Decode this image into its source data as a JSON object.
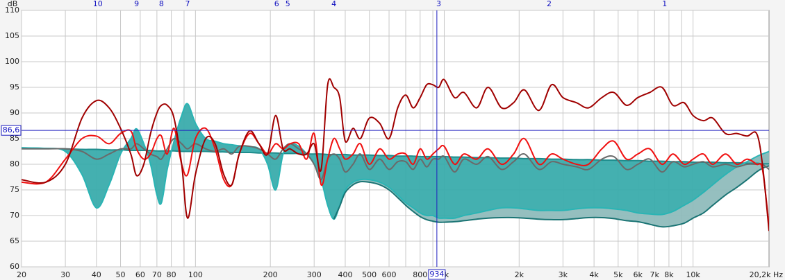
{
  "chart_data": {
    "type": "line",
    "y_label": "dB",
    "xscale": "log",
    "xlim": [
      20,
      20200
    ],
    "ylim": [
      60,
      110
    ],
    "grid": true,
    "yticks": [
      60,
      65,
      70,
      75,
      80,
      85,
      90,
      95,
      100,
      105,
      110
    ],
    "xticks": [
      20,
      30,
      40,
      50,
      60,
      70,
      80,
      100,
      200,
      300,
      400,
      500,
      600,
      800,
      {
        "value": 1000,
        "label": "1k"
      },
      {
        "value": 2000,
        "label": "2k"
      },
      {
        "value": 3000,
        "label": "3k"
      },
      {
        "value": 4000,
        "label": "4k"
      },
      {
        "value": 5000,
        "label": "5k"
      },
      {
        "value": 6000,
        "label": "6k"
      },
      {
        "value": 7000,
        "label": "7k"
      },
      {
        "value": 8000,
        "label": "8k"
      },
      {
        "value": 10000,
        "label": "10k"
      },
      {
        "value": 20200,
        "label": "20,2k Hz"
      }
    ],
    "xminor": [
      90,
      700,
      900,
      9000
    ],
    "markers": [
      {
        "label": 10,
        "x": 40.5
      },
      {
        "label": 9,
        "x": 58
      },
      {
        "label": 8,
        "x": 73
      },
      {
        "label": 7,
        "x": 93
      },
      {
        "label": 6,
        "x": 212
      },
      {
        "label": 5,
        "x": 235
      },
      {
        "label": 4,
        "x": 360
      },
      {
        "label": 3,
        "x": 950
      },
      {
        "label": 2,
        "x": 2640
      },
      {
        "label": 1,
        "x": 7690
      }
    ],
    "cursor": {
      "x": 934,
      "y": {
        "value": 86.6,
        "label": "86,6"
      }
    },
    "x": [
      20,
      25,
      30,
      35,
      40,
      45,
      50,
      55,
      58,
      62,
      66,
      70,
      73,
      77,
      82,
      88,
      93,
      100,
      110,
      120,
      130,
      140,
      150,
      165,
      180,
      195,
      210,
      225,
      240,
      260,
      280,
      300,
      320,
      340,
      360,
      380,
      400,
      430,
      460,
      500,
      550,
      600,
      650,
      700,
      750,
      800,
      850,
      900,
      950,
      1000,
      1100,
      1200,
      1350,
      1500,
      1700,
      1900,
      2100,
      2400,
      2700,
      3000,
      3400,
      3800,
      4300,
      4800,
      5400,
      6000,
      6700,
      7500,
      8300,
      9200,
      10000,
      11000,
      12000,
      13500,
      15000,
      16500,
      18000,
      19000,
      20200
    ],
    "series": [
      {
        "color": "#a00000",
        "values": [
          77,
          76.5,
          80,
          89,
          92.4,
          91,
          87,
          82,
          77.8,
          80,
          86,
          90,
          91.5,
          91.5,
          89,
          80,
          69.5,
          78,
          85,
          84,
          78,
          76,
          82,
          86.5,
          84,
          82,
          89.5,
          83,
          83,
          82,
          82,
          84,
          79,
          95.5,
          95,
          93,
          84.5,
          87,
          85,
          89,
          88,
          85,
          91,
          93.5,
          91,
          93,
          95.5,
          95.5,
          95,
          96.5,
          93,
          94,
          91,
          95,
          91,
          92,
          94.5,
          90.5,
          95.5,
          93,
          92,
          91,
          93,
          94,
          91.5,
          93,
          94,
          95,
          91.5,
          92,
          89.5,
          88.5,
          89,
          86,
          86,
          85.5,
          86,
          80,
          67
        ]
      },
      {
        "color": "#f01010",
        "values": [
          76.5,
          76.5,
          81,
          85,
          85.5,
          84,
          86,
          86.5,
          83,
          81,
          82,
          85,
          85.5,
          82,
          87,
          80,
          78,
          85,
          87,
          83,
          77,
          76,
          82,
          86,
          84,
          82,
          84,
          83,
          84,
          84,
          81,
          86,
          76,
          81,
          85,
          83,
          81,
          82,
          84,
          80,
          83,
          81,
          82,
          82,
          80,
          83,
          81,
          82,
          83,
          83.5,
          80,
          82,
          81,
          83,
          80,
          82,
          85,
          80,
          82,
          81,
          80,
          80,
          83,
          84.5,
          81,
          82,
          83,
          80,
          82,
          80,
          81,
          82,
          80,
          82,
          80,
          81,
          80,
          79,
          68
        ]
      },
      {
        "color": "#6a6a6a",
        "values": [
          83,
          83,
          83,
          82.5,
          81,
          82,
          83,
          83,
          84,
          83,
          82,
          81.5,
          81,
          83,
          85,
          84,
          83,
          84,
          83,
          82.5,
          83,
          82,
          83.5,
          83.5,
          83,
          82,
          81,
          83,
          84,
          83,
          82,
          80,
          77,
          81,
          82,
          81,
          78.5,
          80,
          82,
          79,
          81,
          79,
          80.5,
          80.5,
          79,
          81,
          79.5,
          81,
          81,
          81.5,
          78.5,
          81,
          80,
          81.5,
          79,
          80.5,
          82,
          79,
          80.5,
          80,
          79.5,
          79,
          81,
          81.5,
          79,
          80,
          81,
          78.5,
          80.5,
          79.5,
          80,
          80.5,
          79.5,
          80,
          79.5,
          80,
          80,
          80,
          79
        ]
      },
      {
        "color": "#1e8c8c",
        "values": [
          83.2,
          83.1,
          83.0,
          82.9,
          82.9,
          82.8,
          82.8,
          82.7,
          82.7,
          82.7,
          82.7,
          82.6,
          82.6,
          82.6,
          82.6,
          82.5,
          82.5,
          82.5,
          82.5,
          82.4,
          82.4,
          82.3,
          82.3,
          82.3,
          82.2,
          82.2,
          82.2,
          82.1,
          82.1,
          82.1,
          82.0,
          82.0,
          82.0,
          81.9,
          81.9,
          81.9,
          81.9,
          81.8,
          81.8,
          81.8,
          81.7,
          81.7,
          81.6,
          81.6,
          81.6,
          81.5,
          81.5,
          81.5,
          81.5,
          81.5,
          81.4,
          81.4,
          81.3,
          81.3,
          81.2,
          81.2,
          81.1,
          81.1,
          81.0,
          81.0,
          80.9,
          80.9,
          80.8,
          80.8,
          80.7,
          80.7,
          80.6,
          80.6,
          80.5,
          80.5,
          80.4,
          80.4,
          80.4,
          80.3,
          80.3,
          80.2,
          80.2,
          80.1,
          80.1
        ]
      },
      {
        "color": "#2ab4b4",
        "fill": "#3aacac",
        "values": [
          83.2,
          83.1,
          82.5,
          78,
          71.5,
          76,
          82,
          85,
          86.9,
          84,
          80,
          74,
          72.5,
          79,
          84.5,
          89.5,
          91.8,
          88,
          85,
          84.5,
          84,
          83.8,
          83.6,
          83.4,
          83,
          80,
          75,
          82,
          84,
          83.5,
          82,
          80,
          77,
          72,
          69.3,
          72,
          75,
          76.5,
          77,
          77,
          76.5,
          75.5,
          74,
          72.5,
          71.5,
          70.5,
          70,
          70,
          69.5,
          69.5,
          69.5,
          70,
          70.5,
          71,
          71.5,
          71.5,
          71.3,
          71,
          71,
          71,
          71.3,
          71.5,
          71.5,
          71.3,
          71,
          70.5,
          70.3,
          70.2,
          70.8,
          72,
          73,
          74.5,
          76,
          78,
          79.5,
          80.5,
          81.5,
          82,
          82.5
        ]
      },
      {
        "color": "#1a7474",
        "fill": "#8fbcbc",
        "values": [
          null,
          null,
          null,
          null,
          null,
          null,
          null,
          null,
          null,
          null,
          null,
          null,
          null,
          null,
          null,
          null,
          null,
          null,
          null,
          null,
          null,
          null,
          null,
          null,
          null,
          null,
          null,
          null,
          null,
          null,
          null,
          null,
          null,
          null,
          69.3,
          71.8,
          74.5,
          76,
          76.6,
          76.5,
          76,
          75,
          73.5,
          72,
          70.8,
          69.8,
          69.2,
          68.9,
          68.7,
          68.7,
          68.8,
          69,
          69.3,
          69.5,
          69.6,
          69.6,
          69.5,
          69.3,
          69.2,
          69.2,
          69.4,
          69.6,
          69.6,
          69.4,
          69,
          68.8,
          68.3,
          67.8,
          68,
          68.5,
          69.5,
          70.5,
          72,
          74,
          75.5,
          77,
          78.5,
          79.2,
          79.7
        ]
      }
    ]
  }
}
